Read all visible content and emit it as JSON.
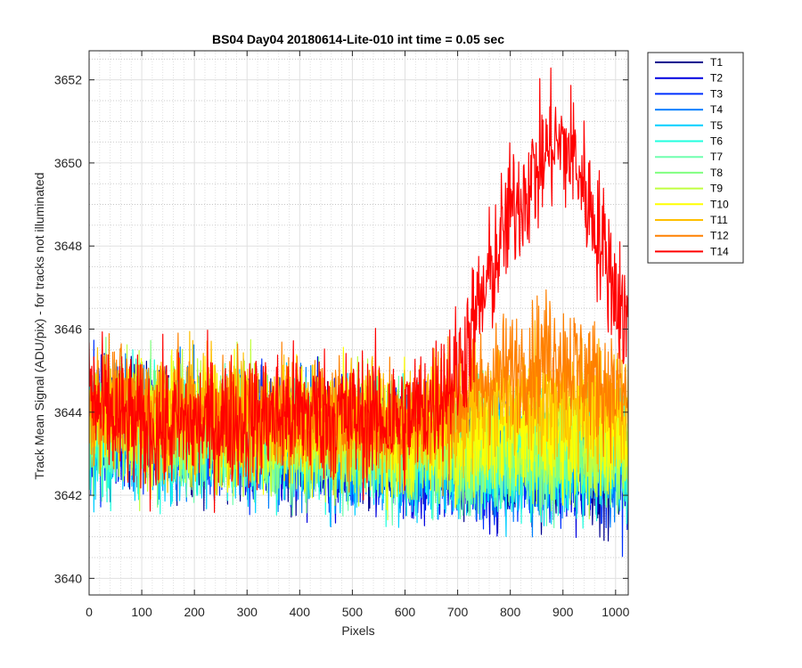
{
  "chart_data": {
    "type": "line",
    "title": "BS04 Day04 20180614-Lite-010 int time = 0.05 sec",
    "xlabel": "Pixels",
    "ylabel": "Track Mean Signal (ADU/pix) - for tracks not illuminated",
    "xlim": [
      0,
      1024
    ],
    "ylim": [
      3639.6,
      3652.7
    ],
    "x_ticks": [
      0,
      100,
      200,
      300,
      400,
      500,
      600,
      700,
      800,
      900,
      1000
    ],
    "y_ticks": [
      3640,
      3642,
      3644,
      3646,
      3648,
      3650,
      3652
    ],
    "grid": "major and minor",
    "legend_position": "outside right",
    "series": [
      {
        "name": "T1",
        "color": "#00008f",
        "profile": [
          [
            0,
            3643.8
          ],
          [
            600,
            3643.0
          ],
          [
            650,
            3642.8
          ],
          [
            1024,
            3642.7
          ]
        ],
        "noise": 1.0,
        "min": 3640.8,
        "max": 3646.5
      },
      {
        "name": "T2",
        "color": "#0000df",
        "profile": [
          [
            0,
            3643.8
          ],
          [
            600,
            3643.0
          ],
          [
            650,
            3642.8
          ],
          [
            1024,
            3642.8
          ]
        ],
        "noise": 1.0,
        "min": 3640.3,
        "max": 3646.4
      },
      {
        "name": "T3",
        "color": "#0030ff",
        "profile": [
          [
            0,
            3643.7
          ],
          [
            600,
            3643.0
          ],
          [
            650,
            3642.8
          ],
          [
            1024,
            3642.7
          ]
        ],
        "noise": 1.0,
        "min": 3639.9,
        "max": 3646.2
      },
      {
        "name": "T4",
        "color": "#0080ff",
        "profile": [
          [
            0,
            3643.7
          ],
          [
            600,
            3643.0
          ],
          [
            650,
            3642.9
          ],
          [
            1024,
            3642.8
          ]
        ],
        "noise": 1.0,
        "min": 3639.7,
        "max": 3646.0
      },
      {
        "name": "T5",
        "color": "#00cfff",
        "profile": [
          [
            0,
            3643.6
          ],
          [
            600,
            3643.0
          ],
          [
            650,
            3642.9
          ],
          [
            1024,
            3642.9
          ]
        ],
        "noise": 1.0,
        "min": 3639.8,
        "max": 3646.0
      },
      {
        "name": "T6",
        "color": "#20ffdf",
        "profile": [
          [
            0,
            3643.6
          ],
          [
            600,
            3643.1
          ],
          [
            650,
            3643.0
          ],
          [
            1024,
            3642.9
          ]
        ],
        "noise": 1.0,
        "min": 3639.8,
        "max": 3646.0
      },
      {
        "name": "T7",
        "color": "#70ffaf",
        "profile": [
          [
            0,
            3643.7
          ],
          [
            600,
            3643.1
          ],
          [
            650,
            3643.0
          ],
          [
            1024,
            3643.0
          ]
        ],
        "noise": 1.0,
        "min": 3640.5,
        "max": 3646.2
      },
      {
        "name": "T8",
        "color": "#80ff80",
        "profile": [
          [
            0,
            3643.8
          ],
          [
            600,
            3643.2
          ],
          [
            650,
            3643.1
          ],
          [
            1024,
            3643.1
          ]
        ],
        "noise": 1.0,
        "min": 3640.5,
        "max": 3646.3
      },
      {
        "name": "T9",
        "color": "#c0ff40",
        "profile": [
          [
            0,
            3643.9
          ],
          [
            600,
            3643.3
          ],
          [
            650,
            3643.2
          ],
          [
            1024,
            3643.3
          ]
        ],
        "noise": 1.0,
        "min": 3640.3,
        "max": 3646.4
      },
      {
        "name": "T10",
        "color": "#ffff00",
        "profile": [
          [
            0,
            3644.0
          ],
          [
            600,
            3643.5
          ],
          [
            650,
            3643.4
          ],
          [
            800,
            3643.7
          ],
          [
            1024,
            3643.6
          ]
        ],
        "noise": 1.0,
        "min": 3641.0,
        "max": 3646.6
      },
      {
        "name": "T11",
        "color": "#ffbf00",
        "profile": [
          [
            0,
            3644.1
          ],
          [
            600,
            3643.7
          ],
          [
            650,
            3643.8
          ],
          [
            800,
            3644.3
          ],
          [
            1024,
            3644.1
          ]
        ],
        "noise": 1.0,
        "min": 3641.3,
        "max": 3648.4
      },
      {
        "name": "T12",
        "color": "#ff8000",
        "profile": [
          [
            0,
            3644.2
          ],
          [
            600,
            3643.8
          ],
          [
            650,
            3644.0
          ],
          [
            700,
            3644.3
          ],
          [
            760,
            3644.8
          ],
          [
            800,
            3645.0
          ],
          [
            850,
            3645.3
          ],
          [
            880,
            3645.5
          ],
          [
            920,
            3645.2
          ],
          [
            960,
            3644.8
          ],
          [
            1024,
            3644.3
          ]
        ],
        "noise": 1.0,
        "min": 3641.5,
        "max": 3648.0
      },
      {
        "name": "T14",
        "color": "#ff0000",
        "profile": [
          [
            0,
            3644.6
          ],
          [
            20,
            3644.0
          ],
          [
            100,
            3643.6
          ],
          [
            200,
            3643.7
          ],
          [
            300,
            3643.8
          ],
          [
            400,
            3644.0
          ],
          [
            500,
            3643.9
          ],
          [
            600,
            3643.8
          ],
          [
            650,
            3644.2
          ],
          [
            700,
            3645.0
          ],
          [
            750,
            3646.8
          ],
          [
            800,
            3648.8
          ],
          [
            850,
            3649.8
          ],
          [
            880,
            3650.5
          ],
          [
            920,
            3650.2
          ],
          [
            950,
            3649.0
          ],
          [
            980,
            3647.8
          ],
          [
            1024,
            3646.0
          ]
        ],
        "noise": 1.1,
        "min": 3641.0,
        "max": 3652.6
      }
    ]
  }
}
